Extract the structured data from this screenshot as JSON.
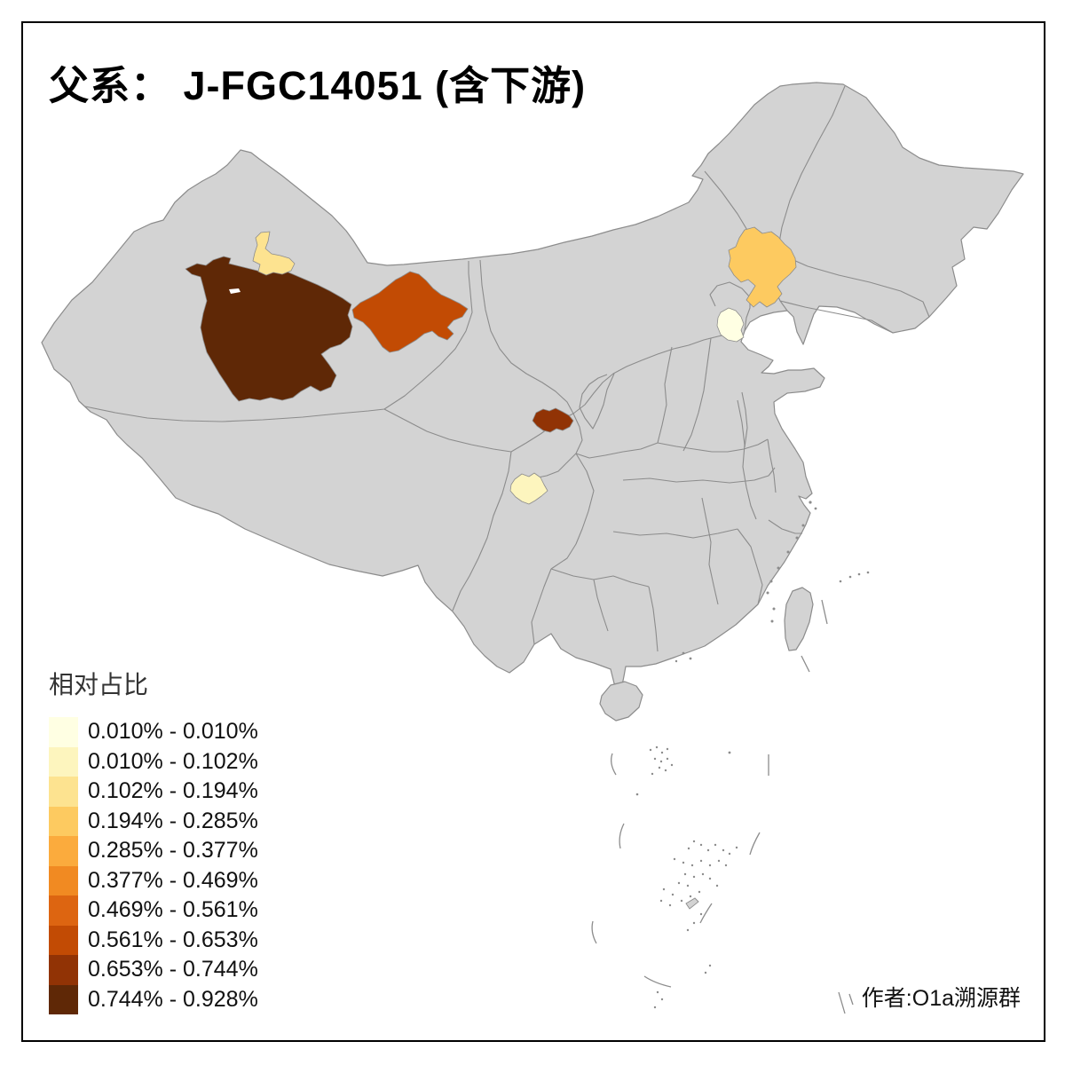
{
  "title": "父系： J-FGC14051 (含下游)",
  "attribution": "作者:O1a溯源群",
  "legend": {
    "title": "相对占比",
    "classes": [
      {
        "label": "0.010% - 0.010%",
        "color": "#FFFFE3"
      },
      {
        "label": "0.010% - 0.102%",
        "color": "#FDF5BE"
      },
      {
        "label": "0.102% - 0.194%",
        "color": "#FDE390"
      },
      {
        "label": "0.194% - 0.285%",
        "color": "#FDCA60"
      },
      {
        "label": "0.285% - 0.377%",
        "color": "#FBAB3D"
      },
      {
        "label": "0.377% - 0.469%",
        "color": "#F18A22"
      },
      {
        "label": "0.469% - 0.561%",
        "color": "#DD6511"
      },
      {
        "label": "0.561% - 0.653%",
        "color": "#C24B04"
      },
      {
        "label": "0.653% - 0.744%",
        "color": "#913305"
      },
      {
        "label": "0.744% - 0.928%",
        "color": "#5F2806"
      }
    ]
  },
  "map": {
    "land_color": "#D3D3D3",
    "border_color": "#8C8C8C",
    "sea_color": "#FFFFFF",
    "highlighted_regions": [
      {
        "id": "region-north-xinjiang",
        "legend_class": 3,
        "range": "0.102% - 0.194%",
        "color": "#FDE390"
      },
      {
        "id": "region-central-xinjiang",
        "legend_class": 10,
        "range": "0.744% - 0.928%",
        "color": "#5F2806"
      },
      {
        "id": "region-east-xinjiang",
        "legend_class": 8,
        "range": "0.561% - 0.653%",
        "color": "#C24B04"
      },
      {
        "id": "region-southeast-inner-mongolia",
        "legend_class": 4,
        "range": "0.194% - 0.285%",
        "color": "#FDCA60"
      },
      {
        "id": "region-beijing-area",
        "legend_class": 1,
        "range": "0.010% - 0.010%",
        "color": "#FFFFE3"
      },
      {
        "id": "region-central-gansu",
        "legend_class": 9,
        "range": "0.653% - 0.744%",
        "color": "#913305"
      },
      {
        "id": "region-central-sichuan",
        "legend_class": 2,
        "range": "0.010% - 0.102%",
        "color": "#FDF5BE"
      }
    ]
  }
}
